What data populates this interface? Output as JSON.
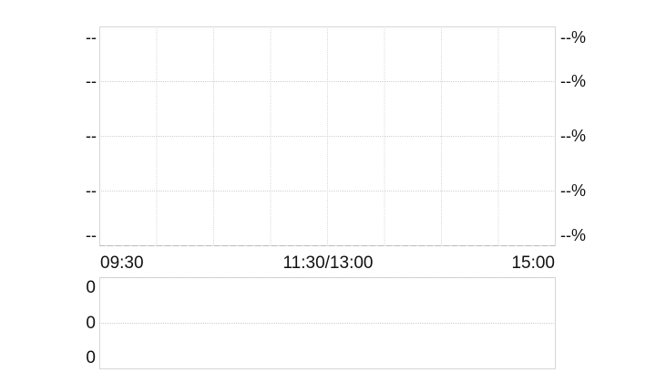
{
  "chart_data": [
    {
      "type": "line",
      "title": "",
      "x_tick_labels": [
        "09:30",
        "11:30/13:00",
        "15:00"
      ],
      "y_left_tick_labels": [
        "--",
        "--",
        "--",
        "--",
        "--"
      ],
      "y_right_tick_labels": [
        "--%",
        "--%",
        "--%",
        "--%",
        "--%"
      ],
      "series": [],
      "grid": true
    },
    {
      "type": "bar",
      "title": "",
      "y_tick_labels": [
        "0",
        "0",
        "0"
      ],
      "series": [],
      "grid": true
    }
  ]
}
